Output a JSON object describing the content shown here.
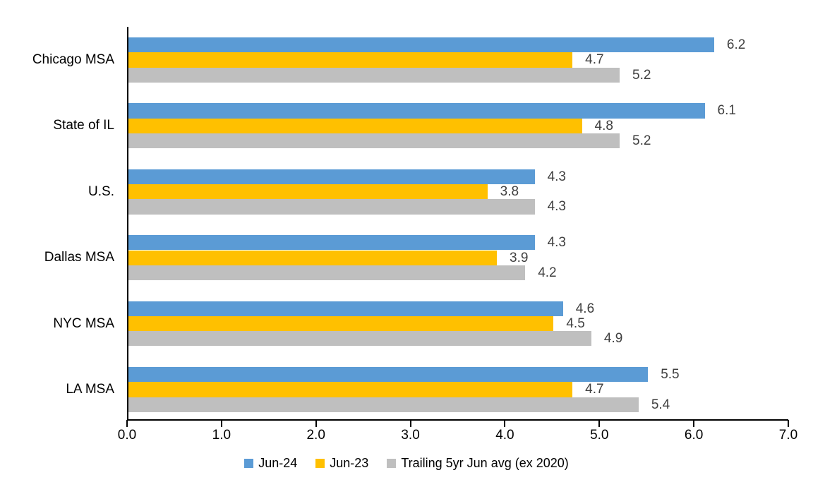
{
  "chart_data": {
    "type": "bar",
    "orientation": "horizontal",
    "categories": [
      "Chicago MSA",
      "State of IL",
      "U.S.",
      "Dallas MSA",
      "NYC MSA",
      "LA MSA"
    ],
    "series": [
      {
        "name": "Jun-24",
        "color": "#5B9BD5",
        "values": [
          6.2,
          6.1,
          4.3,
          4.3,
          4.6,
          5.5
        ]
      },
      {
        "name": "Jun-23",
        "color": "#FFC000",
        "values": [
          4.7,
          4.8,
          3.8,
          3.9,
          4.5,
          4.7
        ]
      },
      {
        "name": "Trailing 5yr Jun avg (ex 2020)",
        "color": "#BFBFBF",
        "values": [
          5.2,
          5.2,
          4.3,
          4.2,
          4.9,
          5.4
        ]
      }
    ],
    "xlim": [
      0,
      7
    ],
    "x_ticks": [
      "0.0",
      "1.0",
      "2.0",
      "3.0",
      "4.0",
      "5.0",
      "6.0",
      "7.0"
    ],
    "grid": false,
    "legend_position": "bottom",
    "data_labels": true,
    "value_format_decimals": 1,
    "value_label_color": "#404040",
    "axis_color": "#000000",
    "background_color": "#FFFFFF"
  }
}
